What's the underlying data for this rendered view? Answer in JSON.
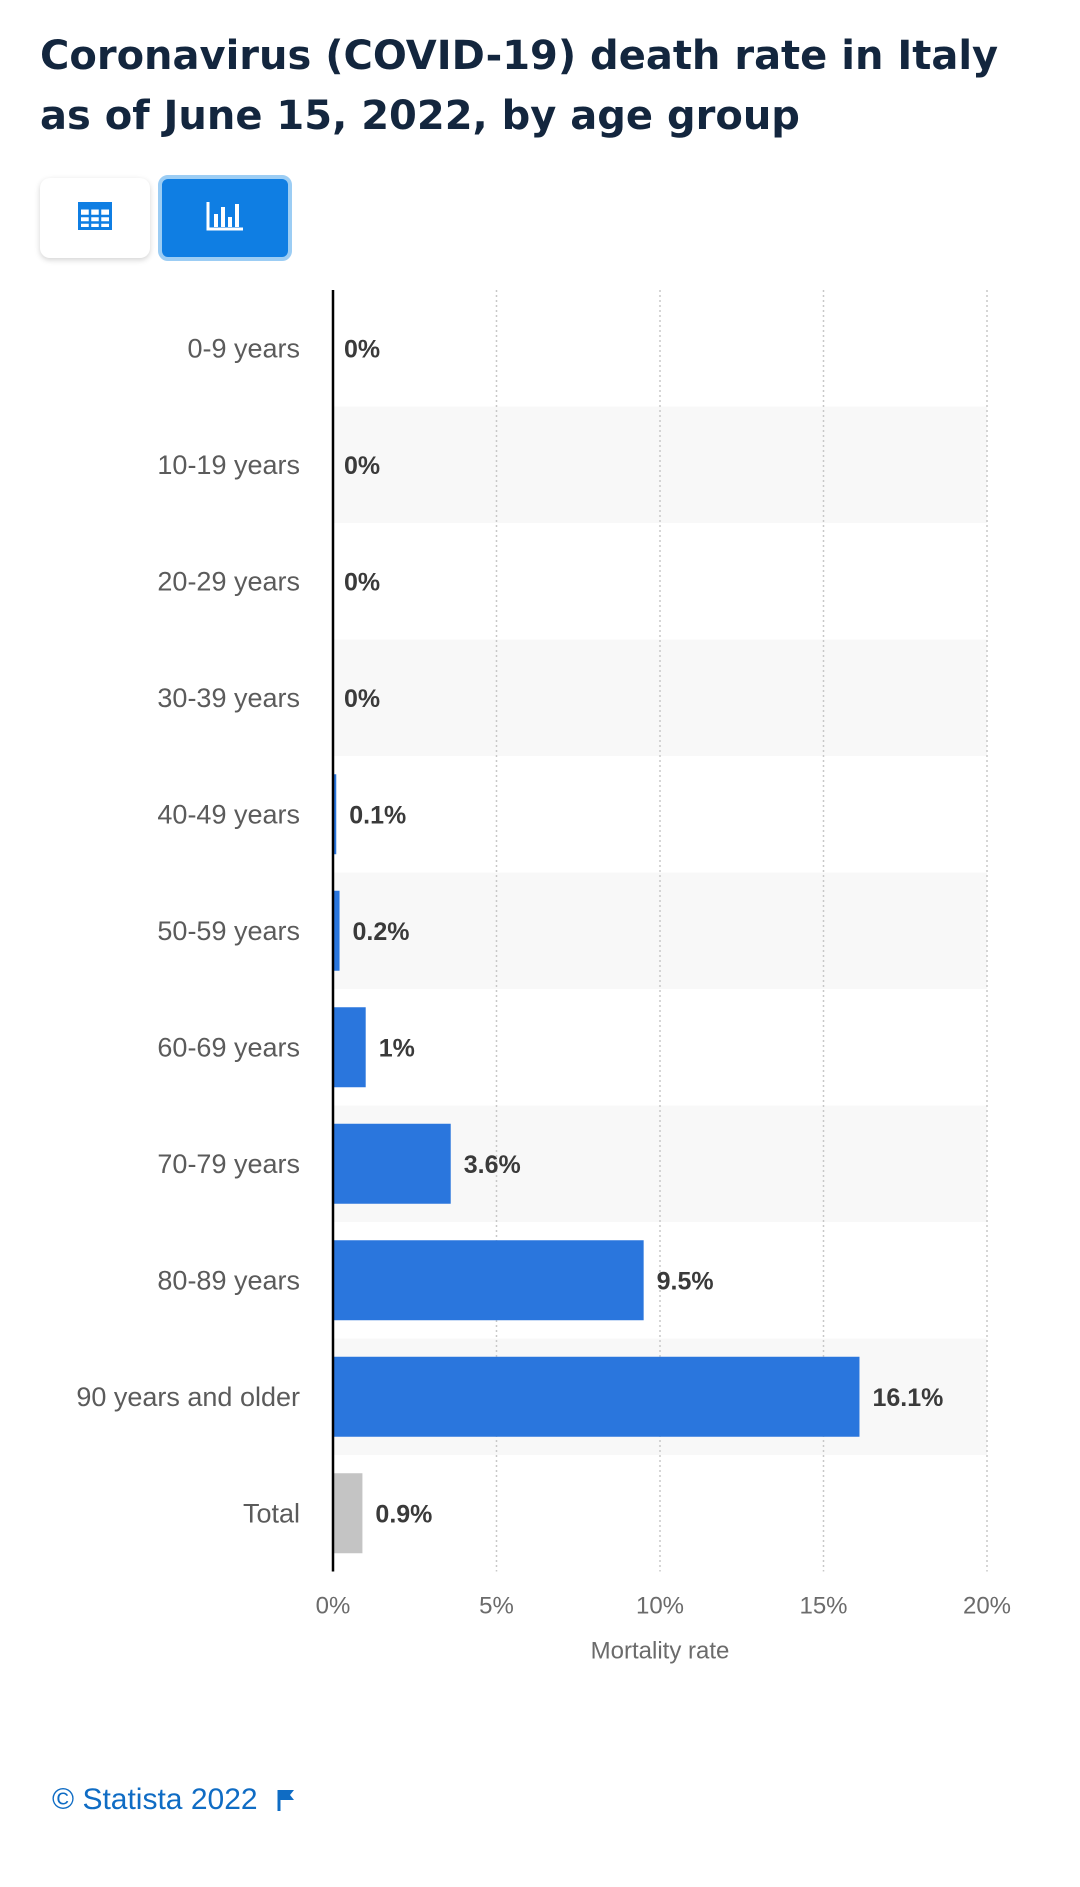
{
  "title": "Coronavirus (COVID-19) death rate in Italy as of June 15, 2022, by age group",
  "toggle": {
    "table_icon": "table-icon",
    "chart_icon": "bar-chart-icon"
  },
  "footer": {
    "copyright": "© Statista 2022",
    "flag_icon": "flag-icon"
  },
  "colors": {
    "bar": "#2a76dd",
    "total_bar": "#c4c4c4",
    "title": "#13263e",
    "accent": "#0f7ee3",
    "footer_link": "#0f6cc4"
  },
  "chart_data": {
    "type": "bar",
    "orientation": "horizontal",
    "categories": [
      "0-9 years",
      "10-19 years",
      "20-29 years",
      "30-39 years",
      "40-49 years",
      "50-59 years",
      "60-69 years",
      "70-79 years",
      "80-89 years",
      "90 years and older",
      "Total"
    ],
    "values": [
      0,
      0,
      0,
      0,
      0.1,
      0.2,
      1,
      3.6,
      9.5,
      16.1,
      0.9
    ],
    "data_labels": [
      "0%",
      "0%",
      "0%",
      "0%",
      "0.1%",
      "0.2%",
      "1%",
      "3.6%",
      "9.5%",
      "16.1%",
      "0.9%"
    ],
    "xlabel": "Mortality rate",
    "ylabel": "",
    "xlim": [
      0,
      20
    ],
    "xticks": [
      0,
      5,
      10,
      15,
      20
    ],
    "xtick_labels": [
      "0%",
      "5%",
      "10%",
      "15%",
      "20%"
    ],
    "grid": "vertical dotted",
    "highlight_category": "Total"
  }
}
